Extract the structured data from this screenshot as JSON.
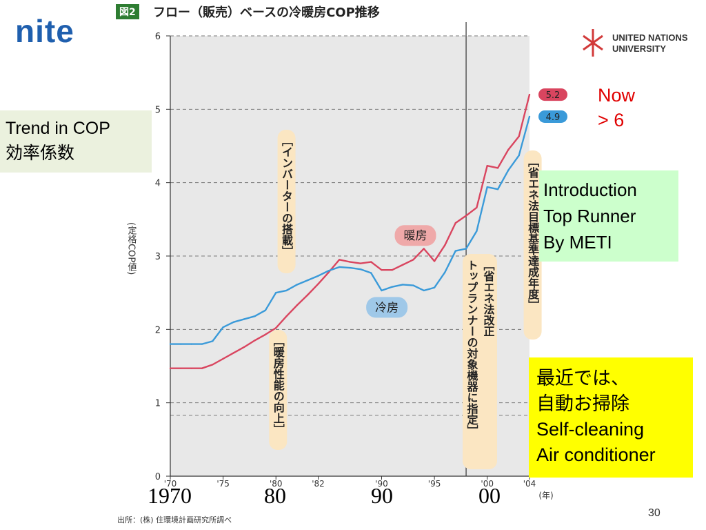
{
  "header": {
    "logo_text": "nite",
    "figure_tag": "図2",
    "figure_title": "フロー（販売）ベースの冷暖房COP推移",
    "un_logo_line1": "UNITED NATIONS",
    "un_logo_line2": "UNIVERSITY"
  },
  "notes": {
    "trend": "Trend in COP\n効率係数",
    "now": "Now\n> 6",
    "introduction": "Introduction\nTop Runner\nBy METI",
    "recent": "最近では、\n自動お掃除\nSelf-cleaning\nAir conditioner"
  },
  "decade_labels": [
    "1970",
    "80",
    "90",
    "00"
  ],
  "source": "出所：(株) 住環境計画研究所調べ",
  "page_number": "30",
  "colors": {
    "heating": "#d9455f",
    "cooling": "#3a9ad9",
    "plot_bg": "#e8e8e8",
    "annotation_bg": "#fbe6c2",
    "heating_label_bg": "#efa9a9",
    "cooling_label_bg": "#9fc8e8"
  },
  "chart_data": {
    "type": "line",
    "ylabel": "(定格COP値)",
    "xlabel": "(年)",
    "ylim": [
      0,
      6
    ],
    "yticks": [
      "0",
      "1",
      "2",
      "3",
      "4",
      "5",
      "6"
    ],
    "xticks": [
      "'70",
      "'75",
      "'80",
      "'82",
      "'90",
      "'95",
      "'00",
      "'04"
    ],
    "grid": "horizontal dashed",
    "series": [
      {
        "name": "暖房",
        "end_label": "5.2",
        "x": [
          "1970",
          "1971",
          "1972",
          "1973",
          "1974",
          "1975",
          "1976",
          "1977",
          "1978",
          "1979",
          "1980",
          "1981",
          "1982",
          "1983",
          "1984",
          "1985",
          "1986",
          "1987",
          "1988",
          "1989",
          "1990",
          "1991",
          "1992",
          "1993",
          "1994",
          "1995",
          "1996",
          "1997",
          "1998",
          "1999",
          "2000",
          "2001",
          "2002",
          "2003",
          "2004"
        ],
        "values": [
          1.47,
          1.47,
          1.47,
          1.47,
          1.52,
          1.6,
          1.68,
          1.76,
          1.85,
          1.93,
          2.02,
          2.18,
          2.33,
          2.47,
          2.62,
          2.78,
          2.95,
          2.92,
          2.9,
          2.92,
          2.81,
          2.81,
          2.88,
          2.95,
          3.1,
          2.93,
          3.15,
          3.45,
          3.55,
          3.66,
          4.23,
          4.2,
          4.45,
          4.63,
          5.2
        ]
      },
      {
        "name": "冷房",
        "end_label": "4.9",
        "x": [
          "1970",
          "1971",
          "1972",
          "1973",
          "1974",
          "1975",
          "1976",
          "1977",
          "1978",
          "1979",
          "1980",
          "1981",
          "1982",
          "1983",
          "1984",
          "1985",
          "1986",
          "1987",
          "1988",
          "1989",
          "1990",
          "1991",
          "1992",
          "1993",
          "1994",
          "1995",
          "1996",
          "1997",
          "1998",
          "1999",
          "2000",
          "2001",
          "2002",
          "2003",
          "2004"
        ],
        "values": [
          1.8,
          1.8,
          1.8,
          1.8,
          1.84,
          2.03,
          2.1,
          2.14,
          2.18,
          2.26,
          2.5,
          2.53,
          2.61,
          2.67,
          2.73,
          2.8,
          2.85,
          2.84,
          2.82,
          2.77,
          2.53,
          2.58,
          2.61,
          2.6,
          2.53,
          2.57,
          2.78,
          3.07,
          3.1,
          3.34,
          3.94,
          3.91,
          4.17,
          4.37,
          4.9
        ]
      }
    ],
    "annotations": [
      "［インバーターの搭載］",
      "［暖房性能の向上］",
      "［省エネ法改正\nトップランナーの対象機器に指定］",
      "［省エネ法目標基準達成年度］"
    ],
    "reference_line": {
      "x": "1998",
      "style": "solid vertical"
    },
    "extra_dashed_level": 0.83
  }
}
